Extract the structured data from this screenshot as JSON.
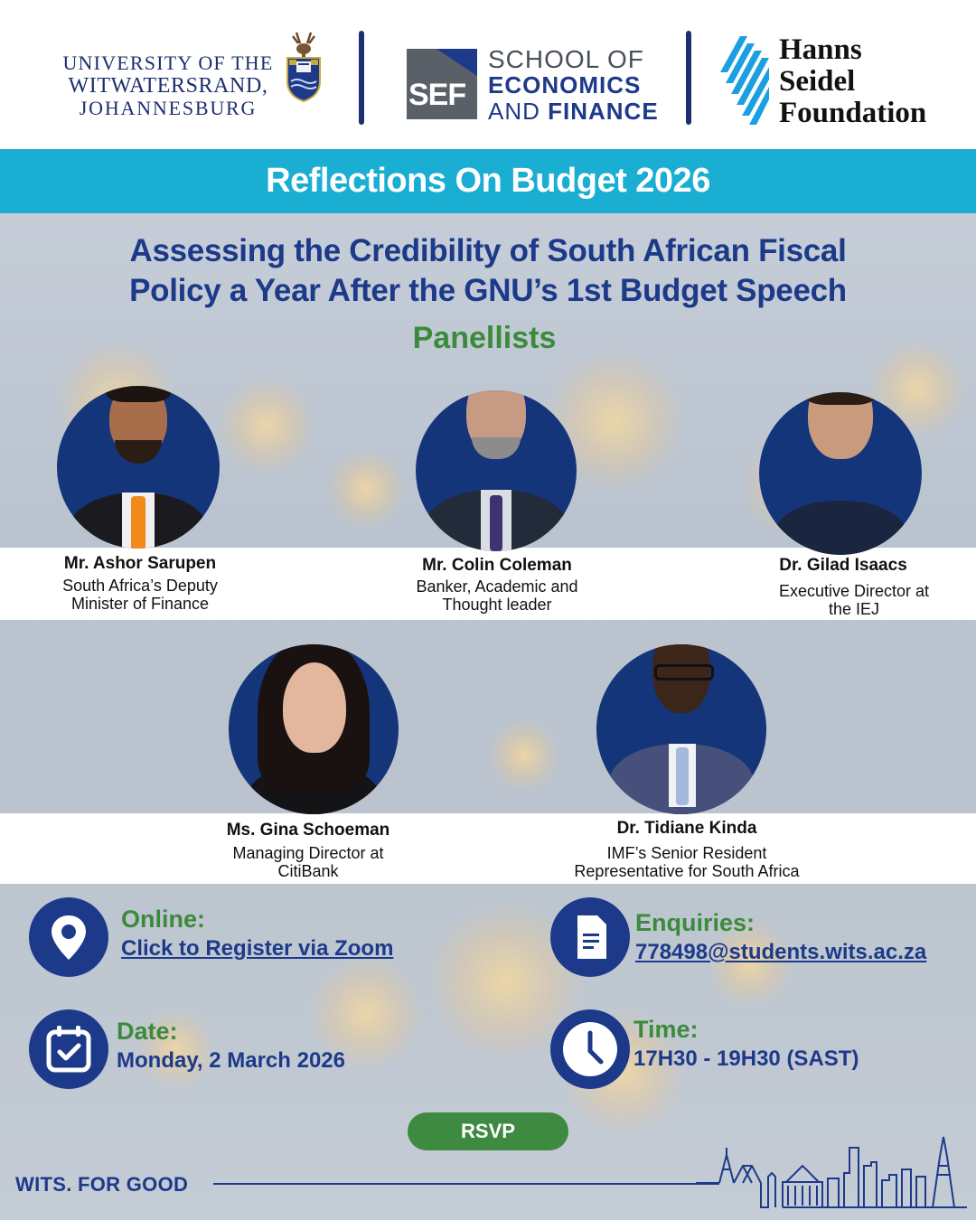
{
  "header": {
    "wits": {
      "line1": "UNIVERSITY OF THE",
      "line2": "WITWATERSRAND,",
      "line3": "JOHANNESBURG",
      "crest_icon": "wits-crest-icon"
    },
    "sef": {
      "letters": "SEF",
      "line1": "SCHOOL OF",
      "line2": "ECONOMICS",
      "line3_a": "AND ",
      "line3_b": "FINANCE"
    },
    "hsf": {
      "line1": "Hanns",
      "line2": "Seidel",
      "line3": "Foundation"
    }
  },
  "banner": {
    "title": "Reflections On Budget 2026"
  },
  "subtitle": {
    "line1": "Assessing the Credibility of South African Fiscal",
    "line2": "Policy a Year After the GNU’s 1st Budget Speech"
  },
  "panellists_heading": "Panellists",
  "panellists": [
    {
      "name": "Mr. Ashor Sarupen",
      "role1": "South Africa’s Deputy",
      "role2": "Minister of Finance"
    },
    {
      "name": "Mr. Colin Coleman",
      "role1": "Banker, Academic and",
      "role2": "Thought leader"
    },
    {
      "name": "Dr. Gilad Isaacs",
      "role1": "Executive Director at",
      "role2": "the IEJ"
    },
    {
      "name": "Ms. Gina Schoeman",
      "role1": "Managing Director at",
      "role2": "CitiBank"
    },
    {
      "name": "Dr. Tidiane Kinda",
      "role1": "IMF’s Senior Resident",
      "role2": "Representative for South Africa"
    }
  ],
  "info": {
    "online": {
      "label": "Online:",
      "value": "Click to Register via Zoom",
      "icon": "location-pin-icon"
    },
    "enquiries": {
      "label": "Enquiries:",
      "value": "778498@students.wits.ac.za",
      "icon": "document-icon"
    },
    "date": {
      "label": "Date:",
      "value": "Monday, 2 March 2026",
      "icon": "calendar-icon"
    },
    "time": {
      "label": "Time:",
      "value": "17H30 - 19H30 (SAST)",
      "icon": "clock-icon"
    }
  },
  "rsvp_label": "RSVP",
  "footer": {
    "tagline": "WITS. FOR GOOD",
    "skyline_icon": "johannesburg-skyline-icon"
  },
  "colors": {
    "navy": "#1d3a8a",
    "banner_cyan": "#1aaed3",
    "green": "#3c8a3c"
  }
}
